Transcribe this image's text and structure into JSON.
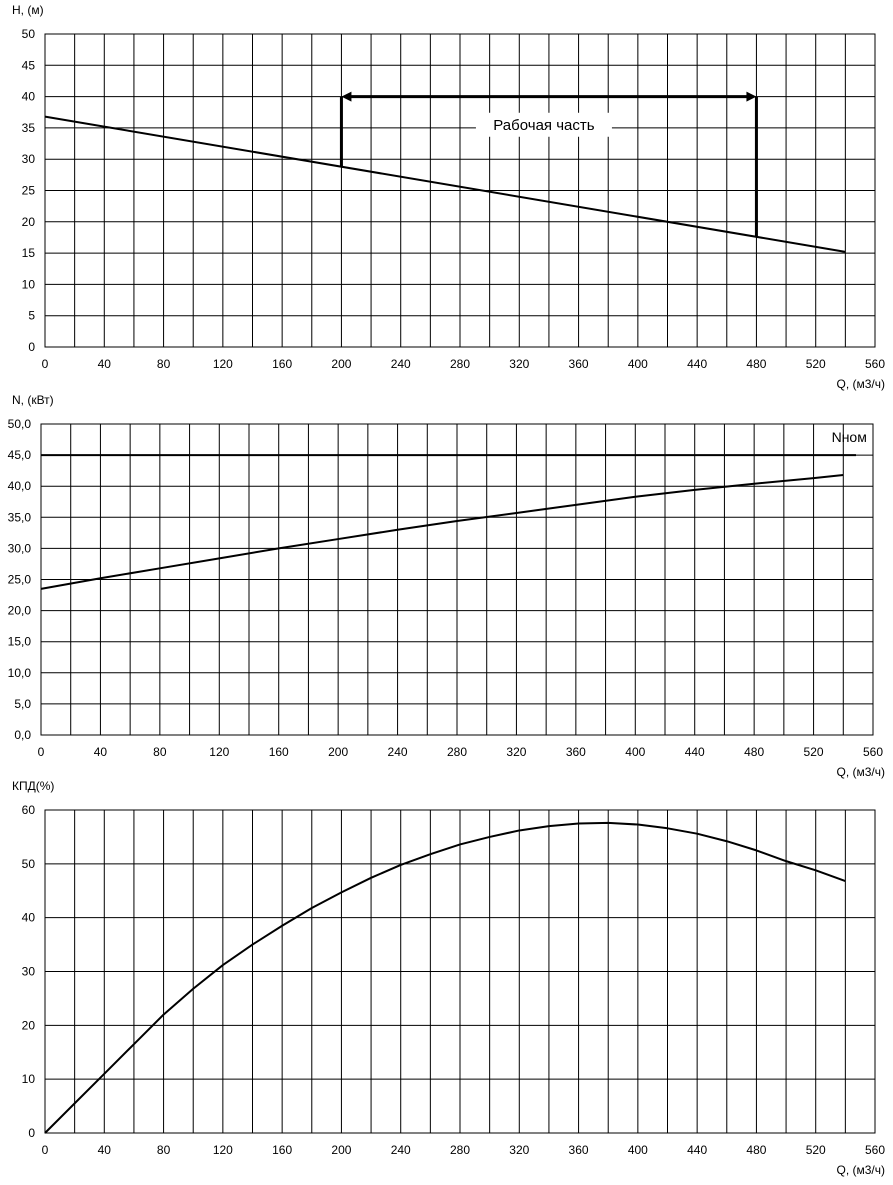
{
  "chart_data": [
    {
      "type": "line",
      "id": "head",
      "ylabel": "H, (м)",
      "xlabel": "Q, (м3/ч)",
      "xlim": [
        0,
        560
      ],
      "ylim": [
        0,
        50
      ],
      "x_step": 20,
      "y_step": 5,
      "x_tick_step": 40,
      "grid": true,
      "ytick_format": "int",
      "series": [
        {
          "x": [
            0,
            540
          ],
          "y": [
            36.8,
            15.2
          ]
        }
      ],
      "annotation": {
        "label": "Рабочая часть",
        "x_start": 200,
        "x_end": 480,
        "y_level": 40,
        "label_y": 35.5
      }
    },
    {
      "type": "line",
      "id": "power",
      "ylabel": "N, (кВт)",
      "xlabel": "Q, (м3/ч)",
      "xlim": [
        0,
        560
      ],
      "ylim": [
        0,
        50
      ],
      "x_step": 20,
      "y_step": 5,
      "x_tick_step": 40,
      "grid": true,
      "ytick_format": "one_decimal_comma",
      "series": [
        {
          "x": [
            0,
            40,
            80,
            120,
            160,
            200,
            240,
            280,
            320,
            360,
            400,
            440,
            480,
            520,
            540
          ],
          "y": [
            23.5,
            25.2,
            26.8,
            28.4,
            30.0,
            31.5,
            33.0,
            34.4,
            35.7,
            37.0,
            38.3,
            39.4,
            40.4,
            41.3,
            41.8
          ]
        }
      ],
      "reference_line": {
        "label": "Nном",
        "y": 45
      }
    },
    {
      "type": "line",
      "id": "efficiency",
      "ylabel": "КПД(%)",
      "xlabel": "Q, (м3/ч)",
      "xlim": [
        0,
        560
      ],
      "ylim": [
        0,
        60
      ],
      "x_step": 20,
      "y_step": 10,
      "x_tick_step": 40,
      "grid": true,
      "ytick_format": "int",
      "series": [
        {
          "x": [
            0,
            20,
            40,
            60,
            80,
            100,
            120,
            140,
            160,
            180,
            200,
            220,
            240,
            260,
            280,
            300,
            320,
            340,
            360,
            380,
            400,
            420,
            440,
            460,
            480,
            500,
            520,
            540
          ],
          "y": [
            0,
            5.5,
            11.0,
            16.5,
            22.0,
            26.8,
            31.2,
            35.0,
            38.5,
            41.8,
            44.7,
            47.4,
            49.8,
            51.8,
            53.6,
            55.0,
            56.2,
            57.0,
            57.5,
            57.6,
            57.3,
            56.6,
            55.6,
            54.2,
            52.5,
            50.5,
            48.8,
            46.8
          ]
        }
      ]
    }
  ]
}
